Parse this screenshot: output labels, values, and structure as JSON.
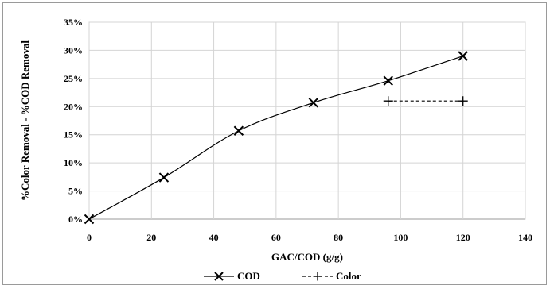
{
  "chart_data": {
    "type": "line",
    "xlabel": "GAC/COD (g/g)",
    "ylabel": "%Color Removal - %COD Removal",
    "xlim": [
      0,
      140
    ],
    "ylim": [
      0,
      35
    ],
    "x_ticks": [
      "0",
      "20",
      "40",
      "60",
      "80",
      "100",
      "120",
      "140"
    ],
    "y_ticks": [
      "0%",
      "5%",
      "10%",
      "15%",
      "20%",
      "25%",
      "30%",
      "35%"
    ],
    "grid": true,
    "legend_position": "bottom",
    "series": [
      {
        "name": "COD",
        "marker": "x",
        "line": "solid",
        "color": "#000000",
        "x": [
          0,
          24,
          48,
          72,
          96,
          120
        ],
        "y": [
          0,
          7.4,
          15.7,
          20.7,
          24.6,
          29.0
        ]
      },
      {
        "name": "Color",
        "marker": "plus",
        "line": "dashed",
        "color": "#000000",
        "x": [
          96,
          120
        ],
        "y": [
          21.0,
          21.0
        ]
      }
    ]
  }
}
